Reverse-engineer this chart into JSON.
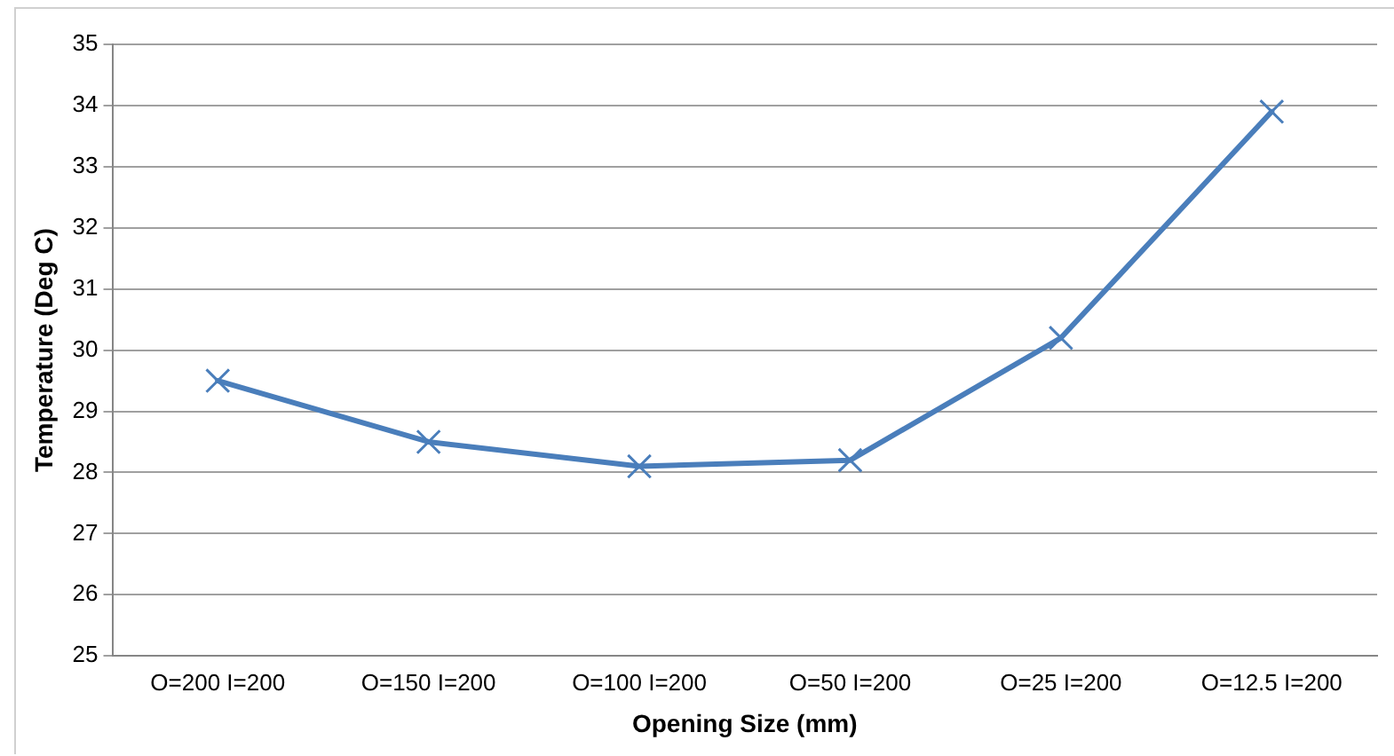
{
  "chart_data": {
    "type": "line",
    "xlabel": "Opening Size (mm)",
    "ylabel": "Temperature (Deg C)",
    "categories": [
      "O=200 I=200",
      "O=150 I=200",
      "O=100 I=200",
      "O=50 I=200",
      "O=25 I=200",
      "O=12.5 I=200"
    ],
    "series": [
      {
        "color": "#4a7ebb",
        "values": [
          29.5,
          28.5,
          28.1,
          28.2,
          30.2,
          33.9
        ]
      }
    ],
    "ylim": [
      25,
      35
    ],
    "yticks": [
      25,
      26,
      27,
      28,
      29,
      30,
      31,
      32,
      33,
      34,
      35
    ],
    "grid": "y",
    "legend": false,
    "marker": "cross",
    "line_style": "solid"
  }
}
